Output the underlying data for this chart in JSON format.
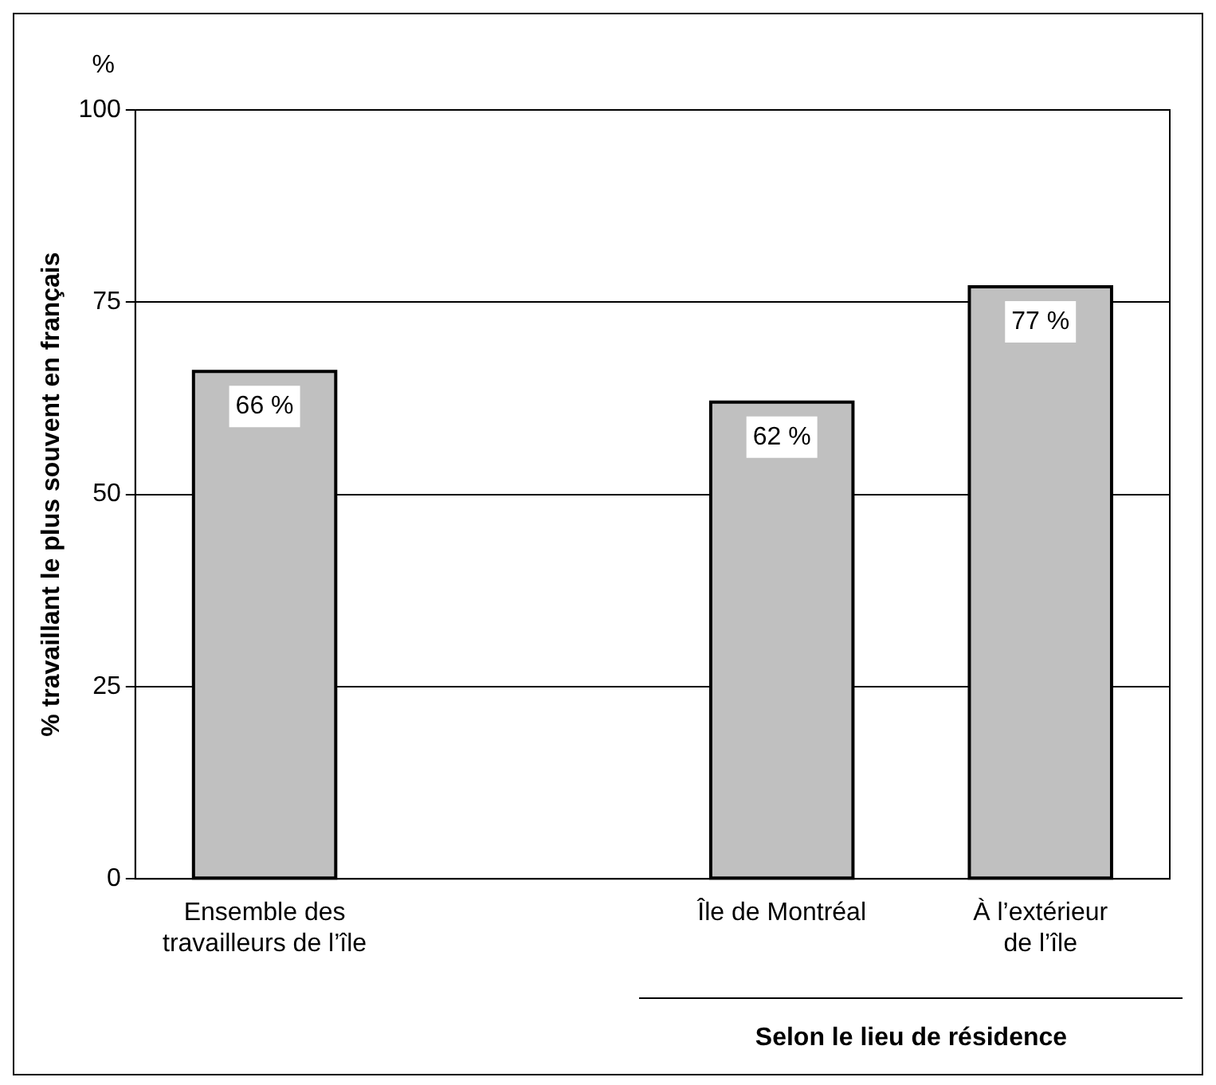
{
  "chart_data": {
    "type": "bar",
    "categories": [
      "Ensemble des travailleurs de l’île",
      null,
      "Île de Montréal",
      "À l’extérieur de l’île"
    ],
    "values": [
      66,
      null,
      62,
      77
    ],
    "value_labels": [
      "66 %",
      null,
      "62 %",
      "77 %"
    ],
    "color": "#c0c0c0",
    "ylabel": "% travaillant le plus souvent en français",
    "xlabel": "Selon le lieu de résidence",
    "annotations": [
      "%"
    ],
    "ylim": [
      0,
      100
    ],
    "yticks": [
      0,
      25,
      50,
      75,
      100
    ],
    "grid": "y",
    "legend": false
  }
}
